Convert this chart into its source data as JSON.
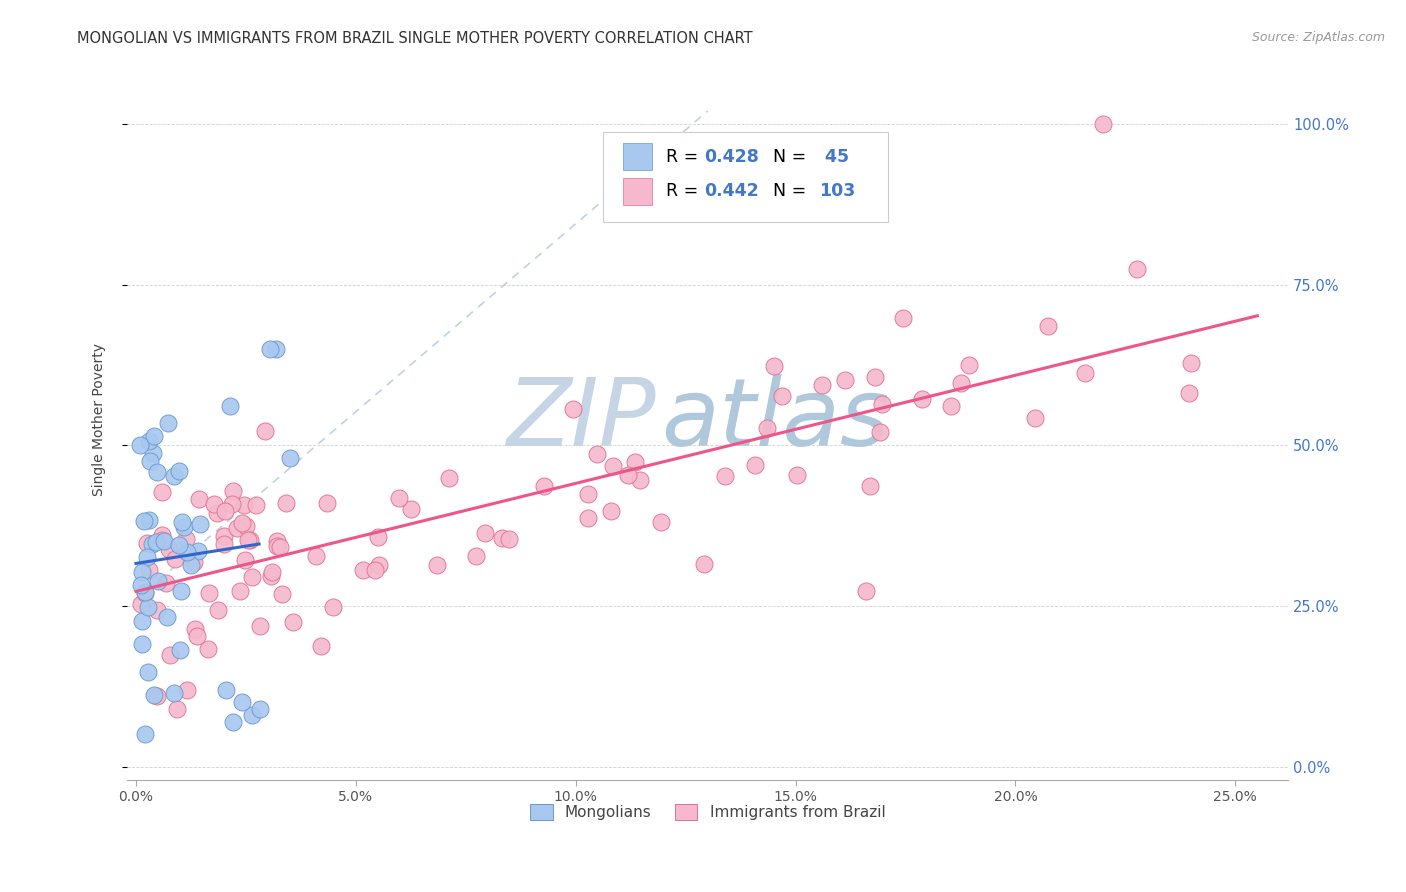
{
  "title": "MONGOLIAN VS IMMIGRANTS FROM BRAZIL SINGLE MOTHER POVERTY CORRELATION CHART",
  "source": "Source: ZipAtlas.com",
  "ylabel": "Single Mother Poverty",
  "legend_R_mongolian": "0.428",
  "legend_N_mongolian": "45",
  "legend_R_brazil": "0.442",
  "legend_N_brazil": "103",
  "mongolian_color": "#A8C8F0",
  "brazil_color": "#F5B8CC",
  "mongolian_edge_color": "#6699CC",
  "brazil_edge_color": "#E07090",
  "blue_line_color": "#3366CC",
  "pink_line_color": "#EE5588",
  "diag_line_color": "#BBCCDD",
  "watermark_main_color": "#C8D8E8",
  "watermark_accent_color": "#A0B8D0",
  "background_color": "#FFFFFF",
  "right_axis_color": "#4477CC",
  "xlim_low": -0.002,
  "xlim_high": 0.262,
  "ylim_low": -0.02,
  "ylim_high": 1.1,
  "xtick_vals": [
    0.0,
    0.05,
    0.1,
    0.15,
    0.2,
    0.25
  ],
  "ytick_vals": [
    0.0,
    0.25,
    0.5,
    0.75,
    1.0
  ],
  "right_ytick_labels": [
    "0.0%",
    "25.0%",
    "50.0%",
    "75.0%",
    "100.0%"
  ]
}
